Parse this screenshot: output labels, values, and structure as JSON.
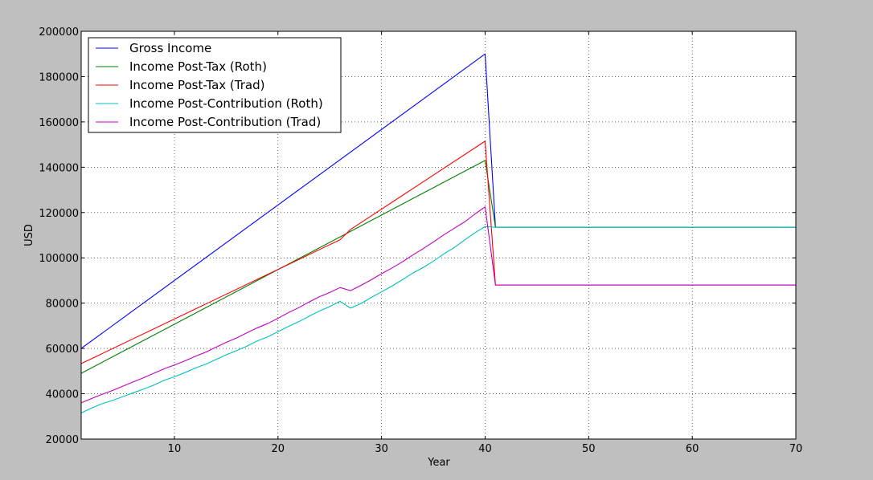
{
  "chart_data": {
    "type": "line",
    "title": "",
    "xlabel": "Year",
    "ylabel": "USD",
    "xlim": [
      1,
      70
    ],
    "ylim": [
      20000,
      200000
    ],
    "xticks": [
      10,
      20,
      30,
      40,
      50,
      60,
      70
    ],
    "xtick_labels": [
      "10",
      "20",
      "30",
      "40",
      "50",
      "60",
      "70"
    ],
    "yticks": [
      20000,
      40000,
      60000,
      80000,
      100000,
      120000,
      140000,
      160000,
      180000,
      200000
    ],
    "ytick_labels": [
      "20000",
      "40000",
      "60000",
      "80000",
      "100000",
      "120000",
      "140000",
      "160000",
      "180000",
      "200000"
    ],
    "grid": true,
    "legend_position": "top-left",
    "background_color": "#bfbfbf",
    "plot_background_color": "#ffffff",
    "series": [
      {
        "name": "Gross Income",
        "color": "#0000ff",
        "points": [
          [
            1,
            60000
          ],
          [
            40,
            190000
          ],
          [
            41,
            113500
          ],
          [
            70,
            113500
          ]
        ]
      },
      {
        "name": "Income Post-Tax (Roth)",
        "color": "#008000",
        "points": [
          [
            1,
            49000
          ],
          [
            40,
            143000
          ],
          [
            41,
            113500
          ],
          [
            70,
            113500
          ]
        ]
      },
      {
        "name": "Income Post-Tax (Trad)",
        "color": "#ff0000",
        "points": [
          [
            1,
            53300
          ],
          [
            26,
            108000
          ],
          [
            27,
            112500
          ],
          [
            40,
            151500
          ],
          [
            41,
            88000
          ],
          [
            70,
            88000
          ]
        ]
      },
      {
        "name": "Income Post-Contribution (Roth)",
        "color": "#00bfbf",
        "points": [
          [
            1,
            31500
          ],
          [
            2,
            33700
          ],
          [
            3,
            35600
          ],
          [
            4,
            37000
          ],
          [
            5,
            38700
          ],
          [
            6,
            40400
          ],
          [
            7,
            42000
          ],
          [
            8,
            43800
          ],
          [
            9,
            45900
          ],
          [
            10,
            47500
          ],
          [
            11,
            49300
          ],
          [
            12,
            51300
          ],
          [
            13,
            53000
          ],
          [
            14,
            55100
          ],
          [
            15,
            57200
          ],
          [
            16,
            59000
          ],
          [
            17,
            61000
          ],
          [
            18,
            63300
          ],
          [
            19,
            65100
          ],
          [
            20,
            67400
          ],
          [
            21,
            69700
          ],
          [
            22,
            71800
          ],
          [
            23,
            74200
          ],
          [
            24,
            76500
          ],
          [
            25,
            78500
          ],
          [
            26,
            80800
          ],
          [
            27,
            77800
          ],
          [
            28,
            79800
          ],
          [
            29,
            82500
          ],
          [
            30,
            85000
          ],
          [
            31,
            87500
          ],
          [
            32,
            90300
          ],
          [
            33,
            93200
          ],
          [
            34,
            95700
          ],
          [
            35,
            98500
          ],
          [
            36,
            101700
          ],
          [
            37,
            104500
          ],
          [
            38,
            107800
          ],
          [
            39,
            111000
          ],
          [
            40,
            113800
          ],
          [
            41,
            113500
          ],
          [
            70,
            113500
          ]
        ]
      },
      {
        "name": "Income Post-Contribution (Trad)",
        "color": "#bf00bf",
        "points": [
          [
            1,
            36000
          ],
          [
            2,
            37900
          ],
          [
            3,
            39700
          ],
          [
            4,
            41400
          ],
          [
            5,
            43300
          ],
          [
            6,
            45200
          ],
          [
            7,
            47000
          ],
          [
            8,
            49000
          ],
          [
            9,
            51000
          ],
          [
            10,
            52700
          ],
          [
            11,
            54500
          ],
          [
            12,
            56500
          ],
          [
            13,
            58300
          ],
          [
            14,
            60500
          ],
          [
            15,
            62700
          ],
          [
            16,
            64600
          ],
          [
            17,
            66900
          ],
          [
            18,
            69100
          ],
          [
            19,
            71000
          ],
          [
            20,
            73300
          ],
          [
            21,
            75800
          ],
          [
            22,
            78000
          ],
          [
            23,
            80500
          ],
          [
            24,
            82800
          ],
          [
            25,
            84700
          ],
          [
            26,
            86900
          ],
          [
            27,
            85500
          ],
          [
            28,
            87800
          ],
          [
            29,
            90300
          ],
          [
            30,
            93000
          ],
          [
            31,
            95500
          ],
          [
            32,
            98200
          ],
          [
            33,
            101200
          ],
          [
            34,
            104000
          ],
          [
            35,
            107000
          ],
          [
            36,
            110100
          ],
          [
            37,
            113000
          ],
          [
            38,
            115800
          ],
          [
            39,
            119300
          ],
          [
            40,
            122500
          ],
          [
            41,
            88000
          ],
          [
            70,
            88000
          ]
        ]
      }
    ]
  }
}
